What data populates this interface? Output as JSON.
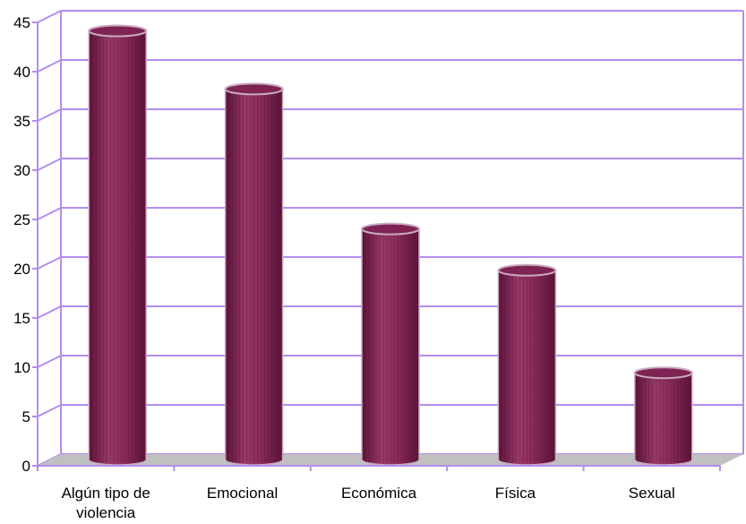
{
  "chart_data": {
    "type": "bar",
    "style": "3d-cylinder",
    "categories": [
      [
        "Algún tipo de",
        "violencia"
      ],
      [
        "Emocional"
      ],
      [
        "Económica"
      ],
      [
        "Física"
      ],
      [
        "Sexual"
      ]
    ],
    "values": [
      43.5,
      37.6,
      23.4,
      19.2,
      8.8
    ],
    "ylim": [
      0,
      45
    ],
    "yticks": [
      0,
      5,
      10,
      15,
      20,
      25,
      30,
      35,
      40,
      45
    ],
    "grid": true,
    "legend": "none",
    "colors": {
      "bar": "#7e2353",
      "bar_light": "#a4406f",
      "bar_dark": "#5a1238",
      "bar_outline": "#c8a9c0",
      "grid": "#b48cf0",
      "floor": "#c0c0c0"
    }
  }
}
